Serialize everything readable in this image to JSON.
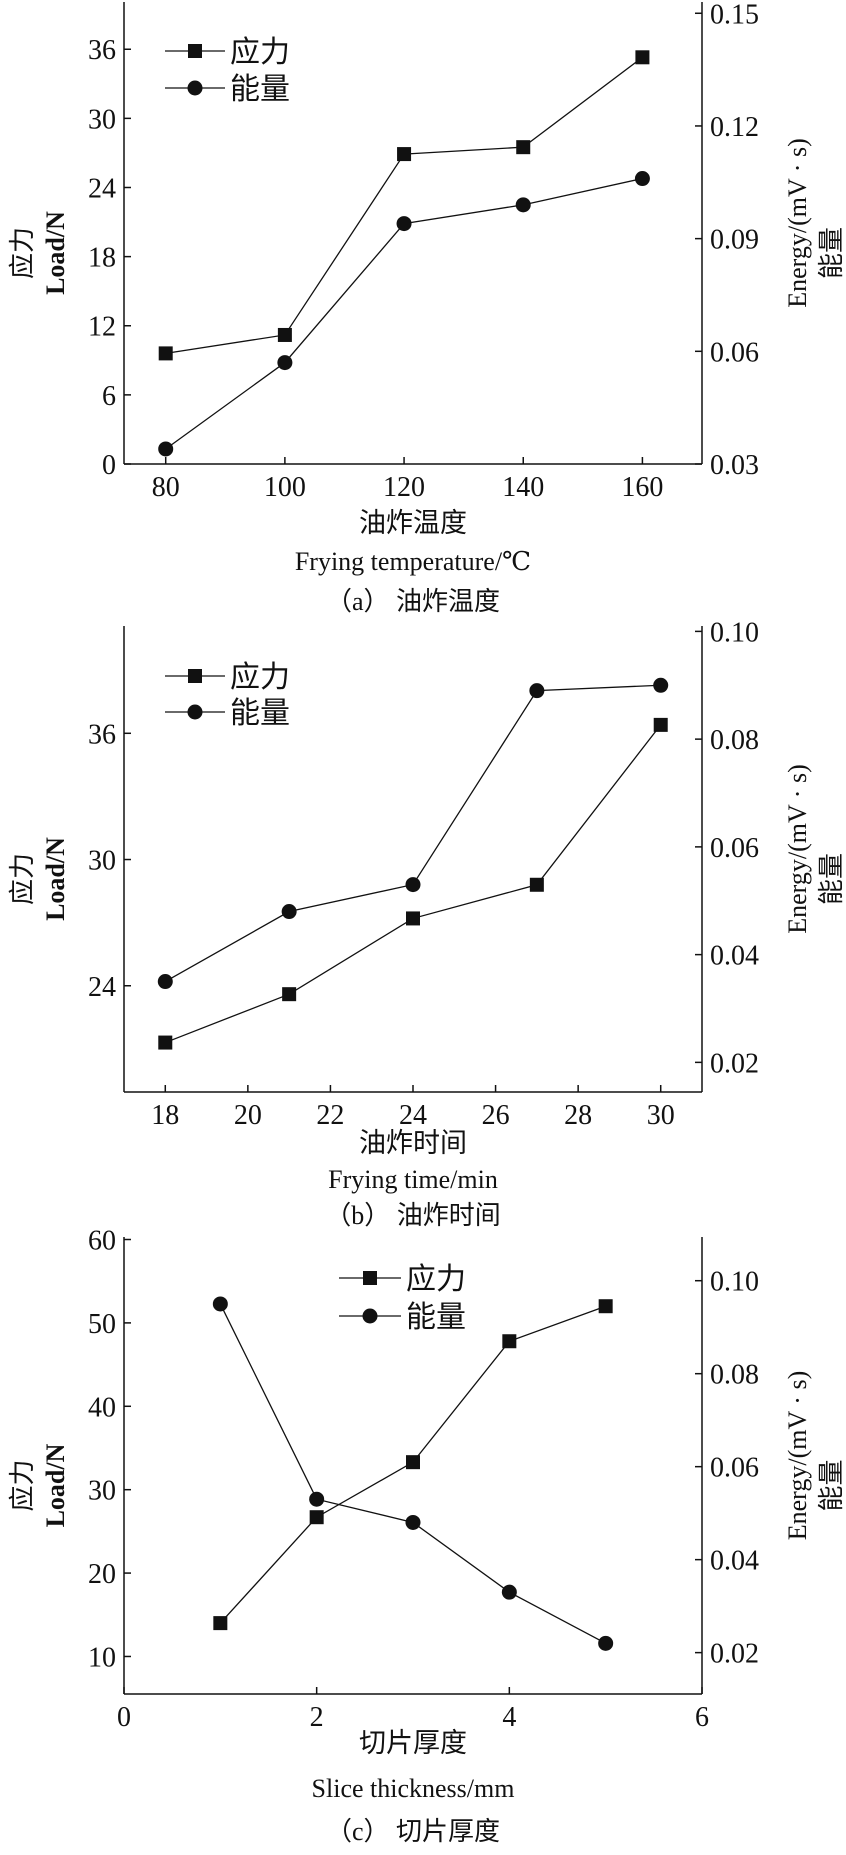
{
  "colors": {
    "line": "#111111",
    "background": "#ffffff"
  },
  "chart_data": [
    {
      "type": "line",
      "caption": "（a） 油炸温度",
      "xlabel_cn": "油炸温度",
      "xlabel_en": "Frying temperature/℃",
      "ylabel_cn": "应力",
      "ylabel_en": "Load/N",
      "y2label_cn": "能量",
      "y2label_en": "Energy/(mV · s)",
      "xlim": [
        73,
        170
      ],
      "xticks": [
        80,
        100,
        120,
        140,
        160
      ],
      "xtick_labels": [
        "80",
        "100",
        "120",
        "140",
        "160"
      ],
      "ylim": [
        0,
        40.1
      ],
      "yticks": [
        0,
        6,
        12,
        18,
        24,
        30,
        36
      ],
      "ytick_labels": [
        "0",
        "6",
        "12",
        "18",
        "24",
        "30",
        "36"
      ],
      "y2lim": [
        0.03,
        0.153
      ],
      "y2ticks": [
        0.03,
        0.06,
        0.09,
        0.12,
        0.15
      ],
      "y2tick_labels": [
        "0.03",
        "0.06",
        "0.09",
        "0.12",
        "0.15"
      ],
      "legend": "top-left",
      "x": [
        80,
        100,
        120,
        140,
        160
      ],
      "series": [
        {
          "name": "应力",
          "axis": "left",
          "marker": "square",
          "values": [
            9.6,
            11.2,
            26.9,
            27.5,
            35.3
          ]
        },
        {
          "name": "能量",
          "axis": "right",
          "marker": "circle",
          "values": [
            0.034,
            0.057,
            0.094,
            0.099,
            0.106
          ]
        }
      ]
    },
    {
      "type": "line",
      "caption": "（b） 油炸时间",
      "xlabel_cn": "油炸时间",
      "xlabel_en": "Frying time/min",
      "ylabel_cn": "应力",
      "ylabel_en": "Load/N",
      "y2label_cn": "能量",
      "y2label_en": "Energy/(mV · s)",
      "xlim": [
        17,
        31
      ],
      "xticks": [
        18,
        20,
        22,
        24,
        26,
        28,
        30
      ],
      "xtick_labels": [
        "18",
        "20",
        "22",
        "24",
        "26",
        "28",
        "30"
      ],
      "ylim": [
        18.95,
        41.1
      ],
      "yticks": [
        24,
        30,
        36
      ],
      "ytick_labels": [
        "24",
        "30",
        "36"
      ],
      "y2lim": [
        0.0145,
        0.101
      ],
      "y2ticks": [
        0.02,
        0.04,
        0.06,
        0.08,
        0.1
      ],
      "y2tick_labels": [
        "0.02",
        "0.04",
        "0.06",
        "0.08",
        "0.10"
      ],
      "legend": "top-left",
      "x": [
        18,
        21,
        24,
        27,
        30
      ],
      "series": [
        {
          "name": "应力",
          "axis": "left",
          "marker": "square",
          "values": [
            21.3,
            23.6,
            27.2,
            28.8,
            36.4
          ]
        },
        {
          "name": "能量",
          "axis": "right",
          "marker": "circle",
          "values": [
            0.035,
            0.048,
            0.053,
            0.089,
            0.09
          ]
        }
      ]
    },
    {
      "type": "line",
      "caption": "（c） 切片厚度",
      "xlabel_cn": "切片厚度",
      "xlabel_en": "Slice thickness/mm",
      "ylabel_cn": "应力",
      "ylabel_en": "Load/N",
      "y2label_cn": "能量",
      "y2label_en": "Energy/(mV · s)",
      "xlim": [
        0,
        6
      ],
      "xticks": [
        0,
        2,
        4,
        6
      ],
      "xtick_labels": [
        "0",
        "2",
        "4",
        "6"
      ],
      "ylim": [
        5.5,
        60.3
      ],
      "yticks": [
        10,
        20,
        30,
        40,
        50,
        60
      ],
      "ytick_labels": [
        "10",
        "20",
        "30",
        "40",
        "50",
        "60"
      ],
      "y2lim": [
        0.0111,
        0.1094
      ],
      "y2ticks": [
        0.02,
        0.04,
        0.06,
        0.08,
        0.1
      ],
      "y2tick_labels": [
        "0.02",
        "0.04",
        "0.06",
        "0.08",
        "0.10"
      ],
      "legend": "top-center",
      "x": [
        1,
        2,
        3,
        4,
        5
      ],
      "series": [
        {
          "name": "应力",
          "axis": "left",
          "marker": "square",
          "values": [
            14.0,
            26.7,
            33.3,
            47.8,
            52.0
          ]
        },
        {
          "name": "能量",
          "axis": "right",
          "marker": "circle",
          "values": [
            0.095,
            0.053,
            0.048,
            0.033,
            0.022
          ]
        }
      ]
    }
  ]
}
